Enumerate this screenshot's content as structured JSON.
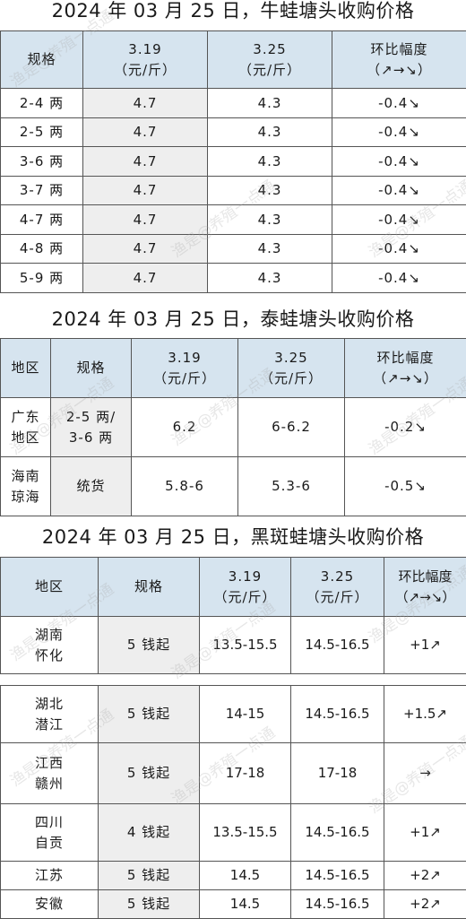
{
  "t1": {
    "title": "2024 年 03 月 25 日，牛蛙塘头收购价格",
    "header": {
      "spec": "规格",
      "d1": "3.19",
      "d2": "3.25",
      "unit": "（元/斤）",
      "chg": "环比幅度",
      "arrows": "（↗→↘）"
    },
    "rows": [
      {
        "spec": "2-4 两",
        "v1": "4.7",
        "v2": "4.3",
        "chg": "-0.4↘"
      },
      {
        "spec": "2-5 两",
        "v1": "4.7",
        "v2": "4.3",
        "chg": "-0.4↘"
      },
      {
        "spec": "3-6 两",
        "v1": "4.7",
        "v2": "4.3",
        "chg": "-0.4↘"
      },
      {
        "spec": "3-7 两",
        "v1": "4.7",
        "v2": "4.3",
        "chg": "-0.4↘"
      },
      {
        "spec": "4-7 两",
        "v1": "4.7",
        "v2": "4.3",
        "chg": "-0.4↘"
      },
      {
        "spec": "4-8 两",
        "v1": "4.7",
        "v2": "4.3",
        "chg": "-0.4↘"
      },
      {
        "spec": "5-9 两",
        "v1": "4.7",
        "v2": "4.3",
        "chg": "-0.4↘"
      }
    ]
  },
  "t2": {
    "title": "2024 年 03 月 25 日，泰蛙塘头收购价格",
    "header": {
      "region": "地区",
      "spec": "规格",
      "d1": "3.19",
      "d2": "3.25",
      "unit": "（元/斤）",
      "chg": "环比幅度",
      "arrows": "（↗→↘）"
    },
    "rows": [
      {
        "r1": "广东",
        "r2": "地区",
        "s1": "2-5 两/",
        "s2": "3-6 两",
        "v1": "6.2",
        "v2": "6-6.2",
        "chg": "-0.2↘"
      },
      {
        "r1": "海南",
        "r2": "琼海",
        "s1": "统货",
        "s2": "",
        "v1": "5.8-6",
        "v2": "5.3-6",
        "chg": "-0.5↘"
      }
    ]
  },
  "t3": {
    "title": "2024 年 03 月 25 日，黑斑蛙塘头收购价格",
    "header": {
      "region": "地区",
      "spec": "规格",
      "d1": "3.19",
      "d2": "3.25",
      "unit": "（元/斤）",
      "chg": "环比幅度",
      "arrows": "（↗→↘）"
    },
    "rows": [
      {
        "r1": "湖南",
        "r2": "怀化",
        "spec": "5 钱起",
        "v1": "13.5-15.5",
        "v2": "14.5-16.5",
        "chg": "+1↗"
      },
      {
        "r1": "湖北",
        "r2": "潜江",
        "spec": "5 钱起",
        "v1": "14-15",
        "v2": "14.5-16.5",
        "chg": "+1.5↗"
      },
      {
        "r1": "江西",
        "r2": "赣州",
        "spec": "5 钱起",
        "v1": "17-18",
        "v2": "17-18",
        "chg": "→"
      },
      {
        "r1": "四川",
        "r2": "自贡",
        "spec": "4 钱起",
        "v1": "13.5-15.5",
        "v2": "14.5-16.5",
        "chg": "+1↗"
      },
      {
        "r1": "江苏",
        "r2": "",
        "spec": "5 钱起",
        "v1": "14.5",
        "v2": "14.5-16.5",
        "chg": "+2↗"
      },
      {
        "r1": "安徽",
        "r2": "",
        "spec": "5 钱起",
        "v1": "14.5",
        "v2": "14.5-16.5",
        "chg": "+2↗"
      }
    ]
  },
  "watermark": "渔是@养殖一点通"
}
